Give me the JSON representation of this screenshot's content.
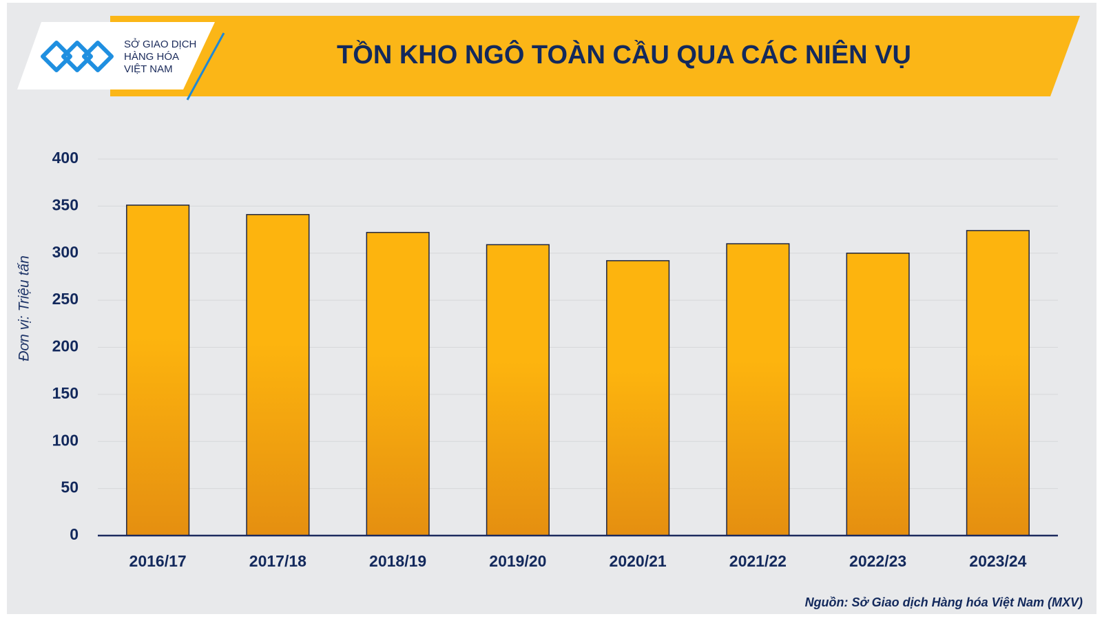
{
  "logo": {
    "lines": [
      "SỞ GIAO DỊCH",
      "HÀNG HÓA",
      "VIỆT NAM"
    ]
  },
  "chart_data": {
    "type": "bar",
    "title": "TỒN KHO NGÔ TOÀN CẦU QUA CÁC NIÊN VỤ",
    "y_label": "Đơn vị: Triệu tấn",
    "source": "Nguồn: Sở Giao dịch Hàng hóa Việt Nam (MXV)",
    "categories": [
      "2016/17",
      "2017/18",
      "2018/19",
      "2019/20",
      "2020/21",
      "2021/22",
      "2022/23",
      "2023/24"
    ],
    "values": [
      351,
      341,
      322,
      309,
      292,
      310,
      300,
      324
    ],
    "color": "#fdb40e",
    "ylim": [
      0,
      400
    ],
    "yticks": [
      0,
      50,
      100,
      150,
      200,
      250,
      300,
      350,
      400
    ],
    "grid": true
  }
}
